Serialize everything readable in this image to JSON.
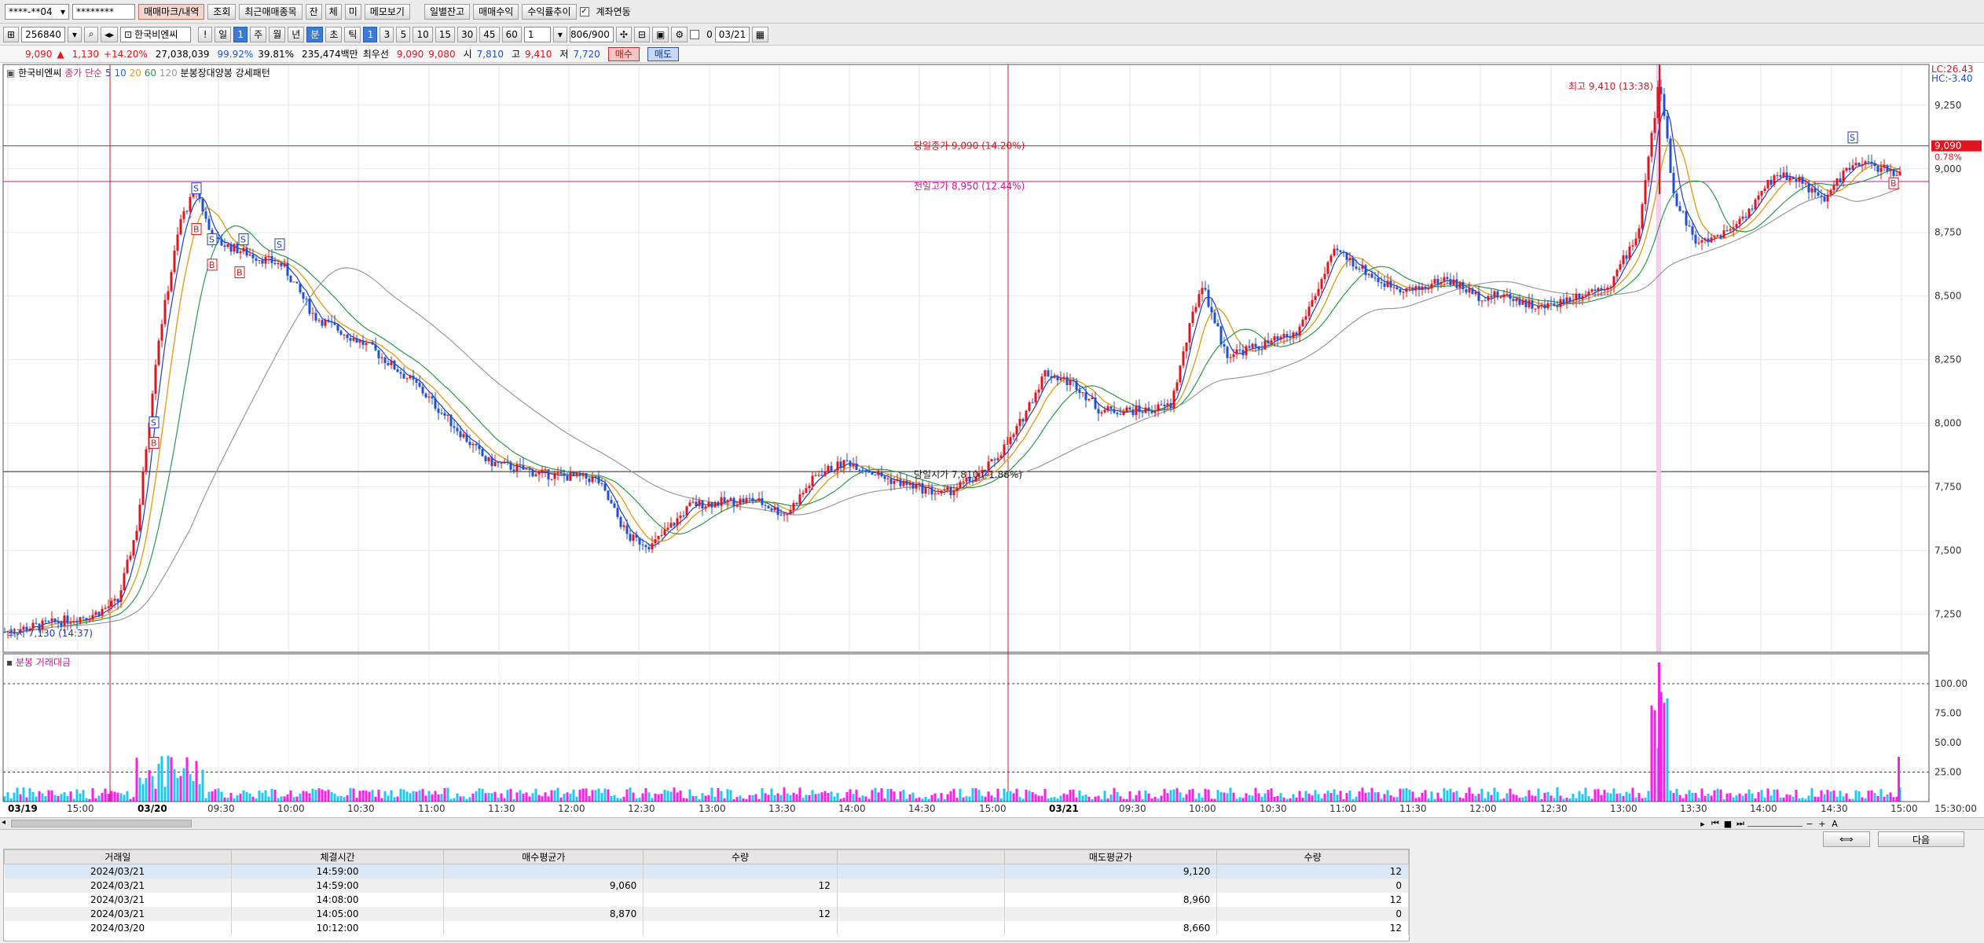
{
  "toolbar1": {
    "account": "****-**04",
    "password": "********",
    "btn_trade_mark": "매매마크/내역",
    "btn_query": "조회",
    "btn_recent": "최근매매종목",
    "btn_jan": "잔",
    "btn_che": "체",
    "btn_mi": "미",
    "btn_memo": "메모보기",
    "btn_daily": "일별잔고",
    "btn_profit": "매매수익",
    "btn_profit_trend": "수익률추이",
    "chk_link": "계좌연동"
  },
  "toolbar2": {
    "code": "256840",
    "stock_name": "한국비엔씨",
    "period_buttons": [
      "일",
      "1",
      "주",
      "월",
      "년",
      "분",
      "초",
      "틱"
    ],
    "interval_buttons": [
      "1",
      "3",
      "5",
      "10",
      "15",
      "30",
      "45",
      "60"
    ],
    "interval_value": "1",
    "count": "806/900",
    "zero": "0",
    "date": "03/21"
  },
  "quote": {
    "price": "9,090",
    "change": "1,130",
    "change_pct": "+14.20%",
    "volume": "27,038,039",
    "ratio1": "99.92%",
    "ratio2": "39.81%",
    "amount": "235,474백만",
    "best_ask_label": "최우선",
    "best_ask": "9,090",
    "best_bid": "9,080",
    "open_label": "시",
    "open": "7,810",
    "high_label": "고",
    "high": "9,410",
    "low_label": "저",
    "low": "7,720",
    "buy_label": "매수",
    "sell_label": "매도"
  },
  "legend": {
    "name": "한국비엔씨",
    "ma_label": "종가 단순",
    "ma_periods": [
      "5",
      "10",
      "20",
      "60",
      "120"
    ],
    "pattern": "분봉장대양봉 강세패턴"
  },
  "price_axis": {
    "ticks": [
      "9,250",
      "9,000",
      "8,750",
      "8,500",
      "8,250",
      "8,000",
      "7,750",
      "7,500",
      "7,250"
    ],
    "lc": "LC:26.43",
    "hc": "HC:-3.40",
    "current_tag": "9,090",
    "current_pct": "0.78%"
  },
  "annotations": {
    "high_label": "최고 9,410 (13:38)",
    "low_label": "최저 7,130 (14:37)",
    "today_close_line": "당일종가 9,090 (14.20%)",
    "prev_high_line": "전일고가 8,950 (12.44%)",
    "today_open_line": "당일시가 7,810 (-1.88%)",
    "signal_s": "S",
    "signal_b": "B"
  },
  "volume_panel": {
    "title": "분봉 거래대금",
    "ticks": [
      "100.00",
      "75.00",
      "50.00",
      "25.00"
    ]
  },
  "time_axis": {
    "labels": [
      "03/19",
      "15:00",
      "03/20",
      "09:30",
      "10:00",
      "10:30",
      "11:00",
      "11:30",
      "12:00",
      "12:30",
      "13:00",
      "13:30",
      "14:00",
      "14:30",
      "15:00",
      "03/21",
      "09:30",
      "10:00",
      "10:30",
      "11:00",
      "11:30",
      "12:00",
      "12:30",
      "13:00",
      "13:30",
      "14:00",
      "14:30",
      "15:00"
    ],
    "end_time": "15:30:00"
  },
  "bottom": {
    "next_label": "다음"
  },
  "trade_table": {
    "headers": [
      "거래일",
      "체결시간",
      "매수평균가",
      "수량",
      "",
      "매도평균가",
      "수량"
    ],
    "rows": [
      [
        "2024/03/21",
        "14:59:00",
        "",
        "",
        "",
        "9,120",
        "12"
      ],
      [
        "2024/03/21",
        "14:59:00",
        "9,060",
        "12",
        "",
        "",
        "0"
      ],
      [
        "2024/03/21",
        "14:08:00",
        "",
        "",
        "",
        "8,960",
        "12"
      ],
      [
        "2024/03/21",
        "14:05:00",
        "8,870",
        "12",
        "",
        "",
        "0"
      ],
      [
        "2024/03/20",
        "10:12:00",
        "",
        "",
        "",
        "8,660",
        "12"
      ]
    ]
  },
  "colors": {
    "up": "#e0141e",
    "down": "#1e50d2",
    "ma5": "#1e3cc8",
    "ma10": "#e0a020",
    "ma20": "#2a9a4a",
    "ma60": "#9a9a9a",
    "magenta": "#d21496",
    "vol_buy": "#ff1ee6",
    "vol_sell": "#1ec8f0"
  }
}
